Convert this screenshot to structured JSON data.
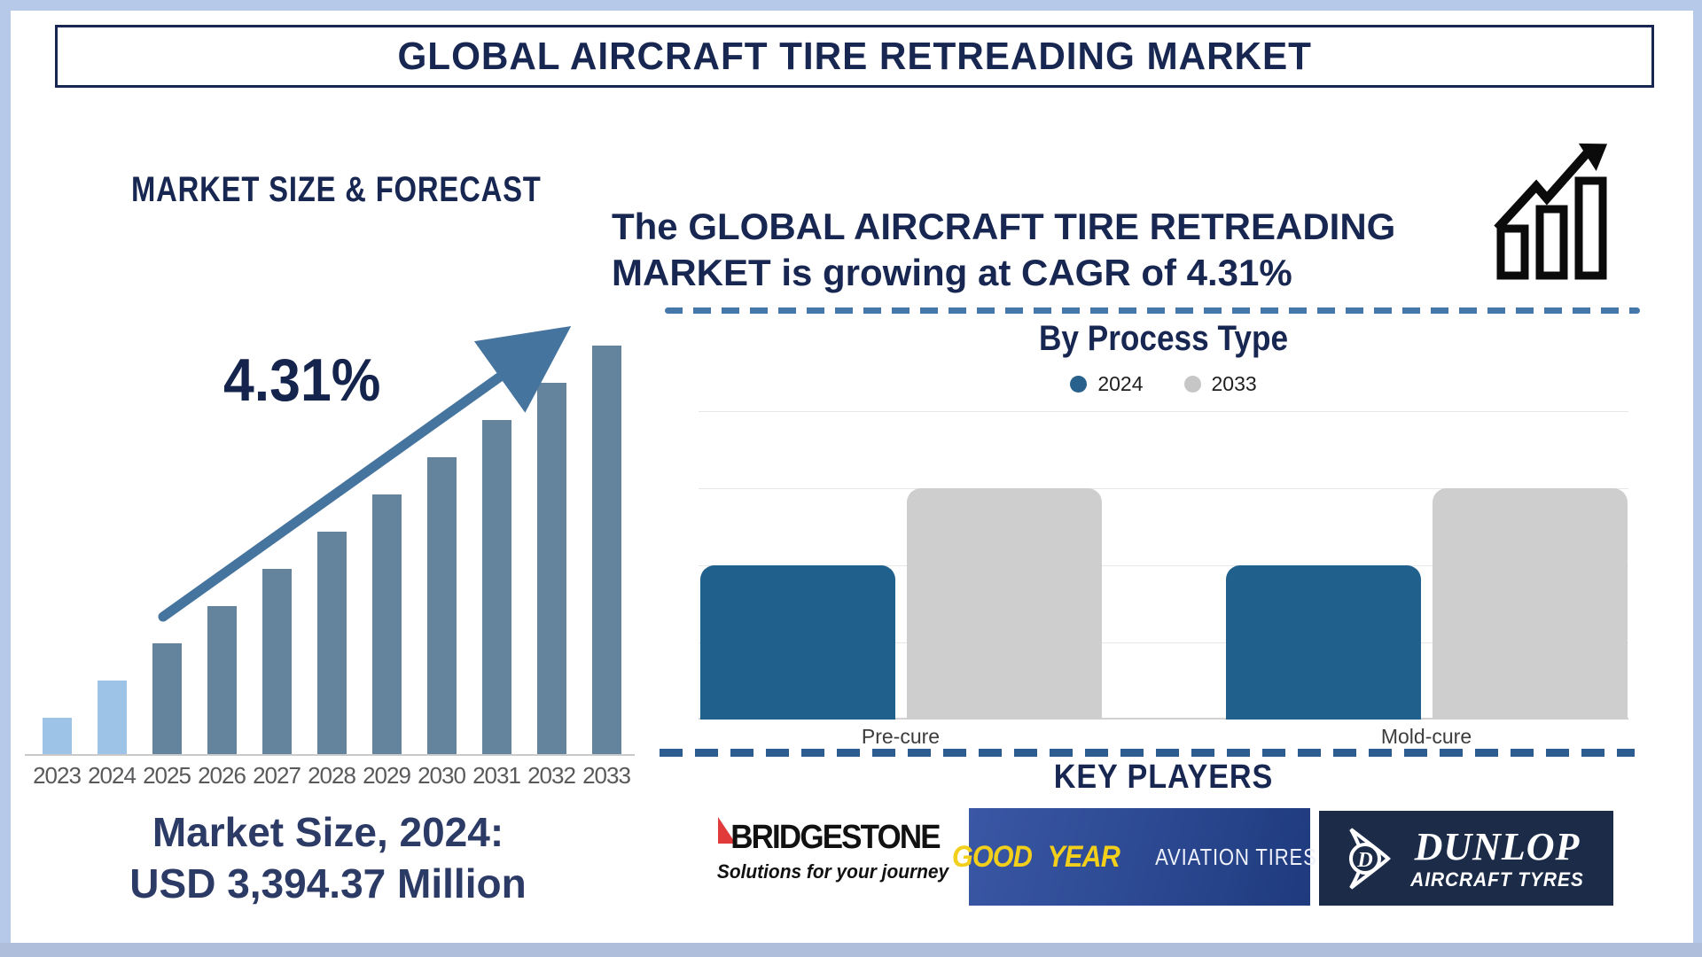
{
  "page": {
    "title": "GLOBAL AIRCRAFT TIRE RETREADING MARKET"
  },
  "left_panel": {
    "section_title": "MARKET SIZE & FORECAST",
    "cagr_label": "4.31%",
    "market_size_line1": "Market Size, 2024:",
    "market_size_line2": "USD 3,394.37 Million"
  },
  "right_panel": {
    "headline_line1": "The GLOBAL AIRCRAFT TIRE RETREADING",
    "headline_line2": "MARKET is growing at CAGR of 4.31%",
    "chart_title": "By Process Type",
    "legend": [
      {
        "label": "2024",
        "color": "#27618c"
      },
      {
        "label": "2033",
        "color": "#c6c6c6"
      }
    ],
    "key_players_title": "KEY PLAYERS",
    "logos": {
      "bridgestone": {
        "name": "BRIDGESTONE",
        "tagline": "Solutions for your journey"
      },
      "goodyear": {
        "brand_left": "GOOD",
        "brand_right": "YEAR",
        "suffix": "AVIATION TIRES"
      },
      "dunlop": {
        "brand": "DUNLOP",
        "suffix": "AIRCRAFT TYRES",
        "monogram": "D"
      }
    }
  },
  "icons": {
    "growth_icon": "bar-chart-with-rising-arrow",
    "trend_arrow": "diagonal-up-arrow",
    "goodyear_mark": "wingfoot",
    "dunlop_mark": "d-in-circle-arrow"
  },
  "colors": {
    "navy_text": "#172752",
    "left_bar_recent": "#9dc3e6",
    "left_bar_forecast": "#64849e",
    "trend_arrow": "#45749e",
    "right_bar_2024": "#1f618c",
    "right_bar_2033": "#cecece",
    "dashed_line": "#2c5c90",
    "page_border": "#b7c9e8",
    "goodyear_yellow": "#f2cf1b",
    "bridgestone_red": "#e03a3a"
  },
  "chart_data": [
    {
      "type": "bar",
      "title": "MARKET SIZE & FORECAST",
      "categories": [
        "2023",
        "2024",
        "2025",
        "2026",
        "2027",
        "2028",
        "2029",
        "2030",
        "2031",
        "2032",
        "2033"
      ],
      "values": [
        1,
        2,
        3,
        4,
        5,
        6,
        7,
        8,
        9,
        10,
        11
      ],
      "value_note": "relative bar heights (no y-axis shown); anchor: Market Size 2024 = USD 3,394.37 Million; CAGR 4.31%",
      "annotation": "4.31%",
      "highlight_categories": [
        "2023",
        "2024"
      ],
      "xlabel": "",
      "ylabel": "",
      "grid": false,
      "legend": false
    },
    {
      "type": "bar",
      "title": "By Process Type",
      "categories": [
        "Pre-cure",
        "Mold-cure"
      ],
      "series": [
        {
          "name": "2024",
          "values": [
            2,
            2
          ]
        },
        {
          "name": "2033",
          "values": [
            3,
            3
          ]
        }
      ],
      "ylim": [
        0,
        4
      ],
      "value_note": "y-axis unlabeled; values in gridline units (4 gridlines, bars reach 2/4 and 3/4)",
      "grid": true,
      "legend_position": "top center"
    }
  ]
}
